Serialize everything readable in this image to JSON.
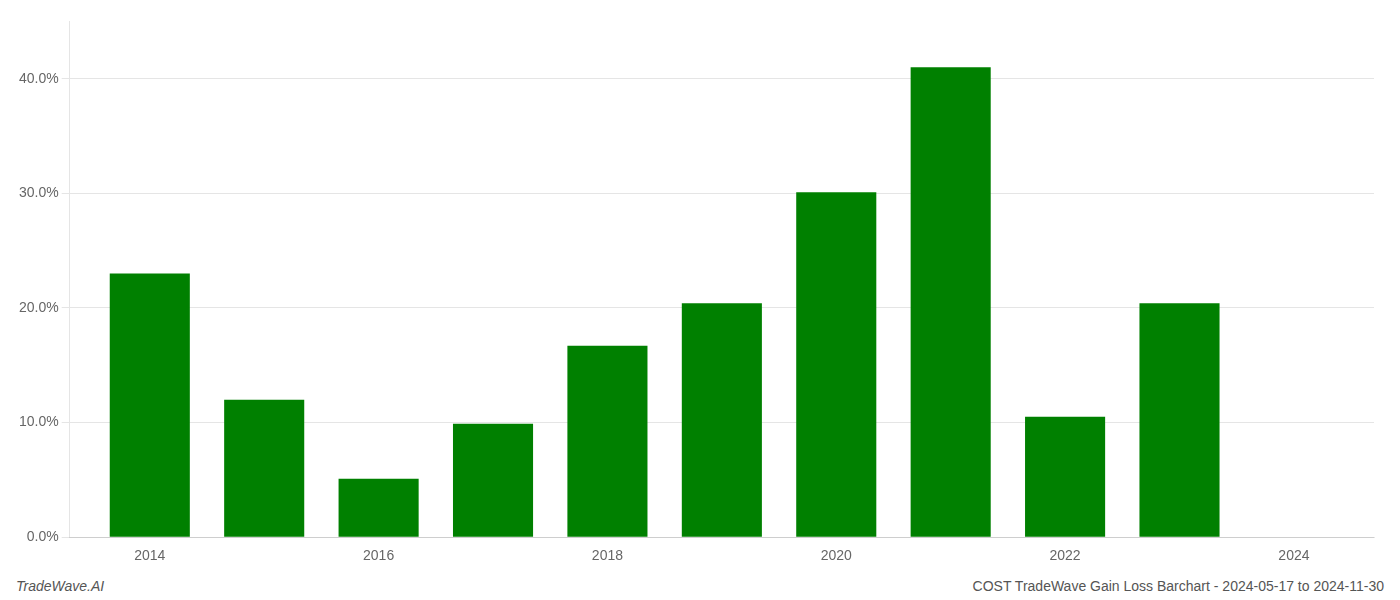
{
  "chart_data": {
    "type": "bar",
    "x": [
      2014,
      2015,
      2016,
      2017,
      2018,
      2019,
      2020,
      2021,
      2022,
      2023
    ],
    "values": [
      0.23,
      0.12,
      0.051,
      0.099,
      0.167,
      0.204,
      0.301,
      0.41,
      0.105,
      0.204
    ],
    "color": "#008000",
    "xlim": [
      2013.3,
      2024.7
    ],
    "xticks": [
      2014,
      2016,
      2018,
      2020,
      2022,
      2024
    ],
    "ylim": [
      0,
      0.45
    ],
    "yticks": [
      {
        "value": 0.0,
        "label": "0.0%"
      },
      {
        "value": 0.1,
        "label": "10.0%"
      },
      {
        "value": 0.2,
        "label": "20.0%"
      },
      {
        "value": 0.3,
        "label": "30.0%"
      },
      {
        "value": 0.4,
        "label": "40.0%"
      }
    ],
    "grid": true,
    "annotations": [
      "TradeWave.AI",
      "COST TradeWave Gain Loss Barchart - 2024-05-17 to 2024-11-30"
    ]
  }
}
